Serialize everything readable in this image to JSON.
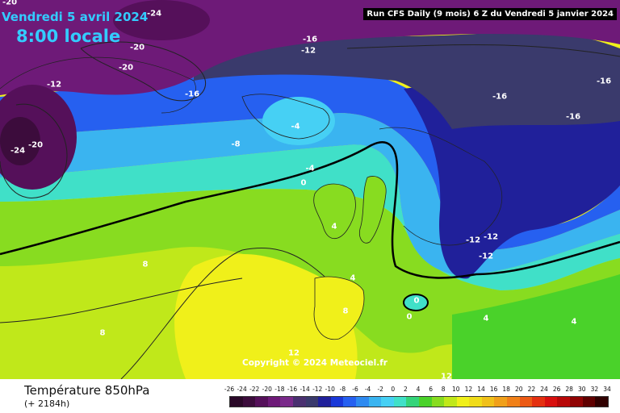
{
  "header": {
    "date": "Vendredi 5 avril 2024",
    "hour": "8:00 locale",
    "run": "Run CFS Daily (9 mois) 6 Z du Vendredi 5 janvier 2024"
  },
  "copyright": "Copyright © 2024 Meteociel.fr",
  "legend": {
    "title": "Température 850hPa",
    "subtitle": "(+ 2184h)",
    "ticks": [
      "-26",
      "-24",
      "-22",
      "-20",
      "-18",
      "-16",
      "-14",
      "-12",
      "-10",
      "-8",
      "-6",
      "-4",
      "-2",
      "0",
      "2",
      "4",
      "6",
      "8",
      "10",
      "12",
      "14",
      "16",
      "18",
      "20",
      "22",
      "24",
      "26",
      "28",
      "30",
      "32",
      "34"
    ],
    "colors": [
      "#2a0828",
      "#3c0c3c",
      "#55105a",
      "#6e1a78",
      "#7a2a8a",
      "#4a3070",
      "#3a3a6c",
      "#20209a",
      "#1a38d8",
      "#2660f0",
      "#2e8af0",
      "#3ab4f0",
      "#46d0f4",
      "#40e0c8",
      "#34d47a",
      "#4ad22a",
      "#88dc20",
      "#c0e81a",
      "#f0f01a",
      "#f0dc1a",
      "#f0c01a",
      "#f0a01a",
      "#f08018",
      "#ec5a14",
      "#e43010",
      "#d8100e",
      "#b80808",
      "#900404",
      "#600000",
      "#300000"
    ]
  },
  "map_labels": [
    {
      "text": "-20",
      "dark": false
    },
    {
      "text": "-24",
      "dark": false
    },
    {
      "text": "-20",
      "dark": false
    },
    {
      "text": "-20",
      "dark": false
    },
    {
      "text": "-16",
      "dark": false
    },
    {
      "text": "-12",
      "dark": false
    },
    {
      "text": "-12",
      "dark": false
    },
    {
      "text": "-16",
      "dark": false
    },
    {
      "text": "-16",
      "dark": false
    },
    {
      "text": "-16",
      "dark": false
    },
    {
      "text": "-16",
      "dark": false
    },
    {
      "text": "-24",
      "dark": false
    },
    {
      "text": "-20",
      "dark": false
    },
    {
      "text": "-4",
      "dark": false
    },
    {
      "text": "-8",
      "dark": false
    },
    {
      "text": "-4",
      "dark": false
    },
    {
      "text": "0",
      "dark": false
    },
    {
      "text": "4",
      "dark": false
    },
    {
      "text": "8",
      "dark": false
    },
    {
      "text": "8",
      "dark": false
    },
    {
      "text": "4",
      "dark": false
    },
    {
      "text": "8",
      "dark": false
    },
    {
      "text": "0",
      "dark": false
    },
    {
      "text": "0",
      "dark": false
    },
    {
      "text": "-12",
      "dark": false
    },
    {
      "text": "-12",
      "dark": false
    },
    {
      "text": "-12",
      "dark": false
    },
    {
      "text": "4",
      "dark": false
    },
    {
      "text": "4",
      "dark": false
    },
    {
      "text": "12",
      "dark": false
    },
    {
      "text": "12",
      "dark": false
    }
  ]
}
